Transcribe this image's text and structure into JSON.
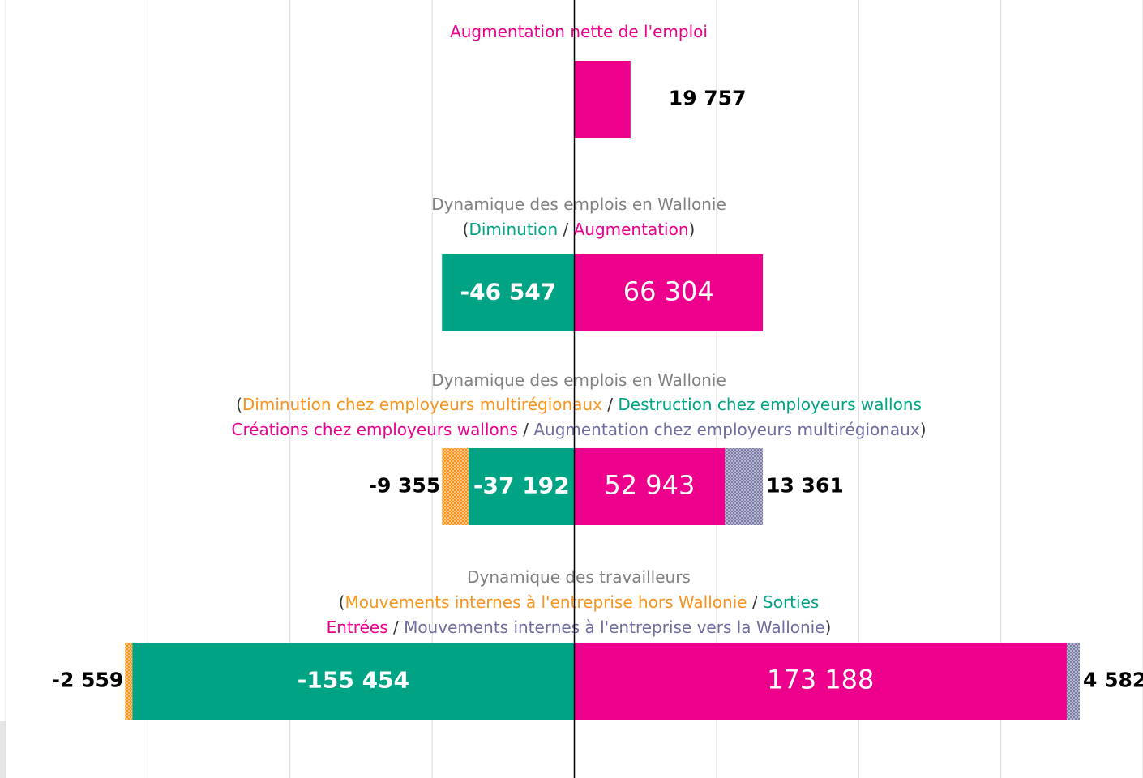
{
  "chart_data": {
    "type": "diverging_bar",
    "xlim": [
      -202000,
      200000
    ],
    "xticks": [
      -200000,
      -150000,
      -100000,
      -50000,
      0,
      50000,
      100000,
      150000,
      200000
    ],
    "grid": true,
    "rows": [
      {
        "title_lines": [
          [
            {
              "text": "Augmentation nette de l'emploi",
              "color": "#ec008c"
            }
          ]
        ],
        "values": [
          19757
        ],
        "value_labels": [
          "19 757"
        ],
        "colors": [
          "#ec008c"
        ],
        "hatched": [
          false
        ]
      },
      {
        "title_lines": [
          [
            {
              "text": "Dynamique des emplois en Wallonie",
              "color": "#808080"
            }
          ],
          [
            {
              "text": "(",
              "color": "#333333"
            },
            {
              "text": "Diminution",
              "color": "#00a383"
            },
            {
              "text": " / ",
              "color": "#333333"
            },
            {
              "text": "Augmentation",
              "color": "#ec008c"
            },
            {
              "text": ")",
              "color": "#333333"
            }
          ]
        ],
        "values": [
          -46547,
          66304
        ],
        "value_labels": [
          "-46 547",
          "66 304"
        ],
        "colors": [
          "#00a383",
          "#ec008c"
        ],
        "hatched": [
          false,
          false
        ]
      },
      {
        "title_lines": [
          [
            {
              "text": "Dynamique des emplois en Wallonie",
              "color": "#808080"
            }
          ],
          [
            {
              "text": "(",
              "color": "#333333"
            },
            {
              "text": "Diminution chez employeurs multirégionaux",
              "color": "#f7941d"
            },
            {
              "text": " / ",
              "color": "#333333"
            },
            {
              "text": "Destruction chez employeurs wallons",
              "color": "#00a383"
            }
          ],
          [
            {
              "text": "Créations chez employeurs wallons",
              "color": "#ec008c"
            },
            {
              "text": " / ",
              "color": "#333333"
            },
            {
              "text": "Augmentation chez employeurs multirégionaux",
              "color": "#6d6d9e"
            },
            {
              "text": ")",
              "color": "#333333"
            }
          ]
        ],
        "values": [
          -37192,
          -9355,
          52943,
          13361
        ],
        "value_labels": [
          "-37 192",
          "-9 355",
          "52 943",
          "13 361"
        ],
        "colors": [
          "#00a383",
          "#f7941d",
          "#ec008c",
          "#7b7ba8"
        ],
        "hatched": [
          false,
          true,
          false,
          true
        ]
      },
      {
        "title_lines": [
          [
            {
              "text": "Dynamique des travailleurs",
              "color": "#808080"
            }
          ],
          [
            {
              "text": "(",
              "color": "#333333"
            },
            {
              "text": "Mouvements internes à l'entreprise hors Wallonie",
              "color": "#f7941d"
            },
            {
              "text": " / ",
              "color": "#333333"
            },
            {
              "text": "Sorties",
              "color": "#00a383"
            }
          ],
          [
            {
              "text": "Entrées",
              "color": "#ec008c"
            },
            {
              "text": " / ",
              "color": "#333333"
            },
            {
              "text": "Mouvements internes à l'entreprise vers la Wallonie",
              "color": "#6d6d9e"
            },
            {
              "text": ")",
              "color": "#333333"
            }
          ]
        ],
        "values": [
          -155454,
          -2559,
          173188,
          4582
        ],
        "value_labels": [
          "-155 454",
          "-2 559",
          "173 188",
          "4 582"
        ],
        "colors": [
          "#00a383",
          "#f7941d",
          "#ec008c",
          "#7b7ba8"
        ],
        "hatched": [
          false,
          true,
          false,
          true
        ]
      }
    ]
  }
}
